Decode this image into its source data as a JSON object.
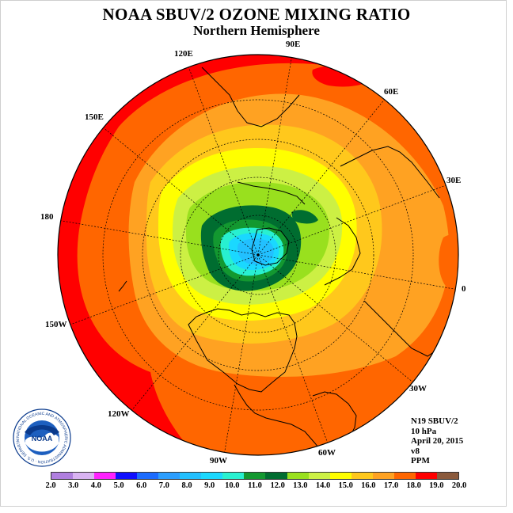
{
  "title": "NOAA SBUV/2 OZONE MIXING RATIO",
  "subtitle": "Northern Hemisphere",
  "longitude_labels": {
    "e120": "120E",
    "e90": "90E",
    "e60": "60E",
    "e30": "30E",
    "zero": "0",
    "w30": "30W",
    "w60": "60W",
    "w90": "90W",
    "w120": "120W",
    "w150": "150W",
    "e180": "180",
    "e150": "150E"
  },
  "info": {
    "instrument": "N19 SBUV/2",
    "level": "10 hPa",
    "date": "April 20, 2015",
    "version": "v8",
    "units": "PPM"
  },
  "logo": {
    "text": "NOAA",
    "ring_text": "NATIONAL OCEANIC AND ATMOSPHERIC ADMINISTRATION · U.S. DEPARTMENT OF COMMERCE"
  },
  "color_scale": {
    "ticks": [
      "2.0",
      "3.0",
      "4.0",
      "5.0",
      "6.0",
      "7.0",
      "8.0",
      "9.0",
      "10.0",
      "11.0",
      "12.0",
      "13.0",
      "14.0",
      "15.0",
      "16.0",
      "17.0",
      "18.0",
      "19.0",
      "20.0"
    ],
    "colors": [
      "#b07fdf",
      "#d9b3f2",
      "#ff22ff",
      "#1010ff",
      "#1c6cff",
      "#2b9eff",
      "#22c0ff",
      "#1ad8ff",
      "#28f0d0",
      "#139830",
      "#006d30",
      "#99e01e",
      "#ccf044",
      "#ffff00",
      "#ffc81c",
      "#ffa222",
      "#ff6600",
      "#ff0000",
      "#8b5a3c"
    ]
  },
  "colors": {
    "ozone_red": "#ff0000",
    "ozone_orange_red": "#ff6600",
    "ozone_orange": "#ffa222",
    "ozone_gold": "#ffc81c",
    "ozone_yellow": "#ffff00",
    "ozone_light_green": "#ccf044",
    "ozone_green": "#99e01e",
    "ozone_dark_green": "#006d30",
    "ozone_mid_green": "#139830",
    "ozone_cyan": "#28f0d0",
    "ozone_sky": "#1ad8ff",
    "ozone_blue": "#22c0ff"
  }
}
